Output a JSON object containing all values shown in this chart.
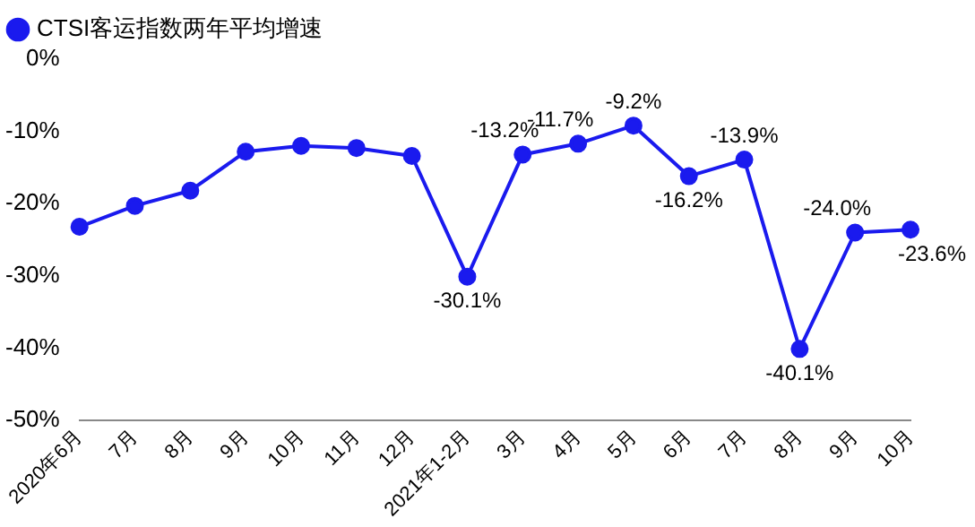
{
  "chart_data": {
    "type": "line",
    "categories": [
      "2020年6月",
      "7月",
      "8月",
      "9月",
      "10月",
      "11月",
      "12月",
      "2021年1-2月",
      "3月",
      "4月",
      "5月",
      "6月",
      "7月",
      "8月",
      "9月",
      "10月"
    ],
    "series": [
      {
        "name": "CTSI客运指数两年平均增速",
        "color": "#1a1aee",
        "values": [
          -23.2,
          -20.3,
          -18.2,
          -12.8,
          -12.0,
          -12.3,
          -13.4,
          -30.1,
          -13.2,
          -11.7,
          -9.2,
          -16.2,
          -13.9,
          -40.1,
          -24.0,
          -23.6
        ],
        "value_labels": [
          null,
          null,
          null,
          null,
          null,
          null,
          null,
          "-30.1%",
          "-13.2%",
          "-11.7%",
          "-9.2%",
          "-16.2%",
          "-13.9%",
          "-40.1%",
          "-24.0%",
          "-23.6%"
        ]
      }
    ],
    "ylim": [
      -50,
      0
    ],
    "yticks": [
      {
        "value": -50,
        "label": "-50%"
      },
      {
        "value": -40,
        "label": "-40%"
      },
      {
        "value": -30,
        "label": "-30%"
      },
      {
        "value": -20,
        "label": "-20%"
      },
      {
        "value": -10,
        "label": "-10%"
      },
      {
        "value": 0,
        "label": "0%"
      }
    ],
    "grid": false,
    "legend": "top left",
    "marker": "circle",
    "line_style": "solid"
  }
}
